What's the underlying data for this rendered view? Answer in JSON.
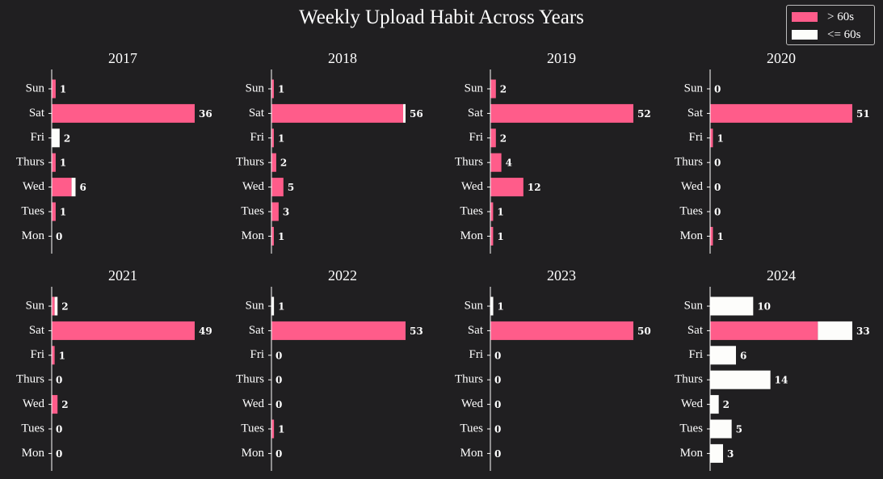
{
  "title": "Weekly Upload Habit Across Years",
  "legend": [
    {
      "label": "> 60s",
      "color": "#ff5c8a"
    },
    {
      "label": "<= 60s",
      "color": "#fdfdfb"
    }
  ],
  "colors": {
    "background": "#201f21",
    "over_60s": "#ff5c8a",
    "under_60s": "#fdfdfb",
    "text": "#ffffff"
  },
  "chart_data": {
    "type": "bar",
    "orientation": "horizontal",
    "stacked": true,
    "categories": [
      "Sun",
      "Sat",
      "Fri",
      "Thurs",
      "Wed",
      "Tues",
      "Mon"
    ],
    "xlim_per_panel": "independent",
    "grid": false,
    "legend_position": "top-right",
    "panels": [
      {
        "title": "2017",
        "series": [
          {
            "name": "> 60s",
            "values": [
              1,
              36,
              0,
              1,
              5,
              1,
              0
            ]
          },
          {
            "name": "<= 60s",
            "values": [
              0,
              0,
              2,
              0,
              1,
              0,
              0
            ]
          }
        ],
        "totals": [
          "1",
          "36",
          "2",
          "1",
          "6",
          "1",
          "0"
        ]
      },
      {
        "title": "2018",
        "series": [
          {
            "name": "> 60s",
            "values": [
              1,
              55,
              1,
              2,
              5,
              3,
              1
            ]
          },
          {
            "name": "<= 60s",
            "values": [
              0,
              1,
              0,
              0,
              0,
              0,
              0
            ]
          }
        ],
        "totals": [
          "1",
          "56",
          "1",
          "2",
          "5",
          "3",
          "1"
        ]
      },
      {
        "title": "2019",
        "series": [
          {
            "name": "> 60s",
            "values": [
              2,
              52,
              2,
              4,
              12,
              1,
              1
            ]
          },
          {
            "name": "<= 60s",
            "values": [
              0,
              0,
              0,
              0,
              0,
              0,
              0
            ]
          }
        ],
        "totals": [
          "2",
          "52",
          "2",
          "4",
          "12",
          "1",
          "1"
        ]
      },
      {
        "title": "2020",
        "series": [
          {
            "name": "> 60s",
            "values": [
              0,
              51,
              1,
              0,
              0,
              0,
              1
            ]
          },
          {
            "name": "<= 60s",
            "values": [
              0,
              0,
              0,
              0,
              0,
              0,
              0
            ]
          }
        ],
        "totals": [
          "0",
          "51",
          "1",
          "0",
          "0",
          "0",
          "1"
        ]
      },
      {
        "title": "2021",
        "series": [
          {
            "name": "> 60s",
            "values": [
              1,
              49,
              1,
              0,
              2,
              0,
              0
            ]
          },
          {
            "name": "<= 60s",
            "values": [
              1,
              0,
              0,
              0,
              0,
              0,
              0
            ]
          }
        ],
        "totals": [
          "2",
          "49",
          "1",
          "0",
          "2",
          "0",
          "0"
        ]
      },
      {
        "title": "2022",
        "series": [
          {
            "name": "> 60s",
            "values": [
              0,
              53,
              0,
              0,
              0,
              1,
              0
            ]
          },
          {
            "name": "<= 60s",
            "values": [
              1,
              0,
              0,
              0,
              0,
              0,
              0
            ]
          }
        ],
        "totals": [
          "1",
          "53",
          "0",
          "0",
          "0",
          "1",
          "0"
        ]
      },
      {
        "title": "2023",
        "series": [
          {
            "name": "> 60s",
            "values": [
              0,
              50,
              0,
              0,
              0,
              0,
              0
            ]
          },
          {
            "name": "<= 60s",
            "values": [
              1,
              0,
              0,
              0,
              0,
              0,
              0
            ]
          }
        ],
        "totals": [
          "1",
          "50",
          "0",
          "0",
          "0",
          "0",
          "0"
        ]
      },
      {
        "title": "2024",
        "series": [
          {
            "name": "> 60s",
            "values": [
              0,
              25,
              0,
              0,
              0,
              0,
              0
            ]
          },
          {
            "name": "<= 60s",
            "values": [
              10,
              8,
              6,
              14,
              2,
              5,
              3
            ]
          }
        ],
        "totals": [
          "10",
          "33",
          "6",
          "14",
          "2",
          "5",
          "3"
        ]
      }
    ]
  }
}
